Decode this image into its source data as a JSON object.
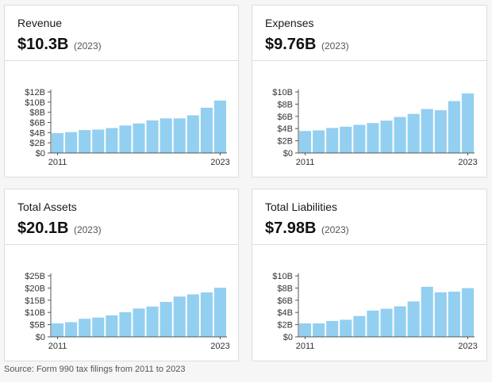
{
  "chart_data": [
    {
      "type": "bar",
      "title": "Revenue",
      "headline_value": "$10.3B",
      "headline_year": "(2023)",
      "years": [
        "2011",
        "2012",
        "2013",
        "2014",
        "2015",
        "2016",
        "2017",
        "2018",
        "2019",
        "2020",
        "2021",
        "2022",
        "2023"
      ],
      "values": [
        3.9,
        4.1,
        4.5,
        4.6,
        4.9,
        5.4,
        5.8,
        6.4,
        6.8,
        6.8,
        7.4,
        8.9,
        10.3
      ],
      "unit": "B",
      "x_tick_labels": [
        "2011",
        "2023"
      ],
      "y_ticks": [
        0,
        2,
        4,
        6,
        8,
        10,
        12
      ],
      "y_tick_labels": [
        "$0",
        "$2B",
        "$4B",
        "$6B",
        "$8B",
        "$10B",
        "$12B"
      ],
      "ylim": [
        0,
        12
      ],
      "xlabel": "",
      "ylabel": ""
    },
    {
      "type": "bar",
      "title": "Expenses",
      "headline_value": "$9.76B",
      "headline_year": "(2023)",
      "years": [
        "2011",
        "2012",
        "2013",
        "2014",
        "2015",
        "2016",
        "2017",
        "2018",
        "2019",
        "2020",
        "2021",
        "2022",
        "2023"
      ],
      "values": [
        3.6,
        3.7,
        4.1,
        4.3,
        4.6,
        4.9,
        5.3,
        5.9,
        6.4,
        7.2,
        7.0,
        8.5,
        9.76
      ],
      "unit": "B",
      "x_tick_labels": [
        "2011",
        "2023"
      ],
      "y_ticks": [
        0,
        2,
        4,
        6,
        8,
        10
      ],
      "y_tick_labels": [
        "$0",
        "$2B",
        "$4B",
        "$6B",
        "$8B",
        "$10B"
      ],
      "ylim": [
        0,
        10
      ],
      "xlabel": "",
      "ylabel": ""
    },
    {
      "type": "bar",
      "title": "Total Assets",
      "headline_value": "$20.1B",
      "headline_year": "(2023)",
      "years": [
        "2011",
        "2012",
        "2013",
        "2014",
        "2015",
        "2016",
        "2017",
        "2018",
        "2019",
        "2020",
        "2021",
        "2022",
        "2023"
      ],
      "values": [
        5.5,
        6.0,
        7.4,
        7.9,
        8.8,
        10.1,
        11.6,
        12.4,
        14.3,
        16.5,
        17.4,
        18.2,
        20.1
      ],
      "unit": "B",
      "x_tick_labels": [
        "2011",
        "2023"
      ],
      "y_ticks": [
        0,
        5,
        10,
        15,
        20,
        25
      ],
      "y_tick_labels": [
        "$0",
        "$5B",
        "$10B",
        "$15B",
        "$20B",
        "$25B"
      ],
      "ylim": [
        0,
        25
      ],
      "xlabel": "",
      "ylabel": ""
    },
    {
      "type": "bar",
      "title": "Total Liabilities",
      "headline_value": "$7.98B",
      "headline_year": "(2023)",
      "years": [
        "2011",
        "2012",
        "2013",
        "2014",
        "2015",
        "2016",
        "2017",
        "2018",
        "2019",
        "2020",
        "2021",
        "2022",
        "2023"
      ],
      "values": [
        2.2,
        2.2,
        2.6,
        2.8,
        3.4,
        4.3,
        4.6,
        5.0,
        5.8,
        8.2,
        7.3,
        7.4,
        7.98
      ],
      "unit": "B",
      "x_tick_labels": [
        "2011",
        "2023"
      ],
      "y_ticks": [
        0,
        2,
        4,
        6,
        8,
        10
      ],
      "y_tick_labels": [
        "$0",
        "$2B",
        "$4B",
        "$6B",
        "$8B",
        "$10B"
      ],
      "ylim": [
        0,
        10
      ],
      "xlabel": "",
      "ylabel": ""
    }
  ],
  "colors": {
    "bar": "#93cff0",
    "axis": "#555555",
    "tick_text": "#333333"
  },
  "source": "Source: Form 990 tax filings from 2011 to 2023"
}
